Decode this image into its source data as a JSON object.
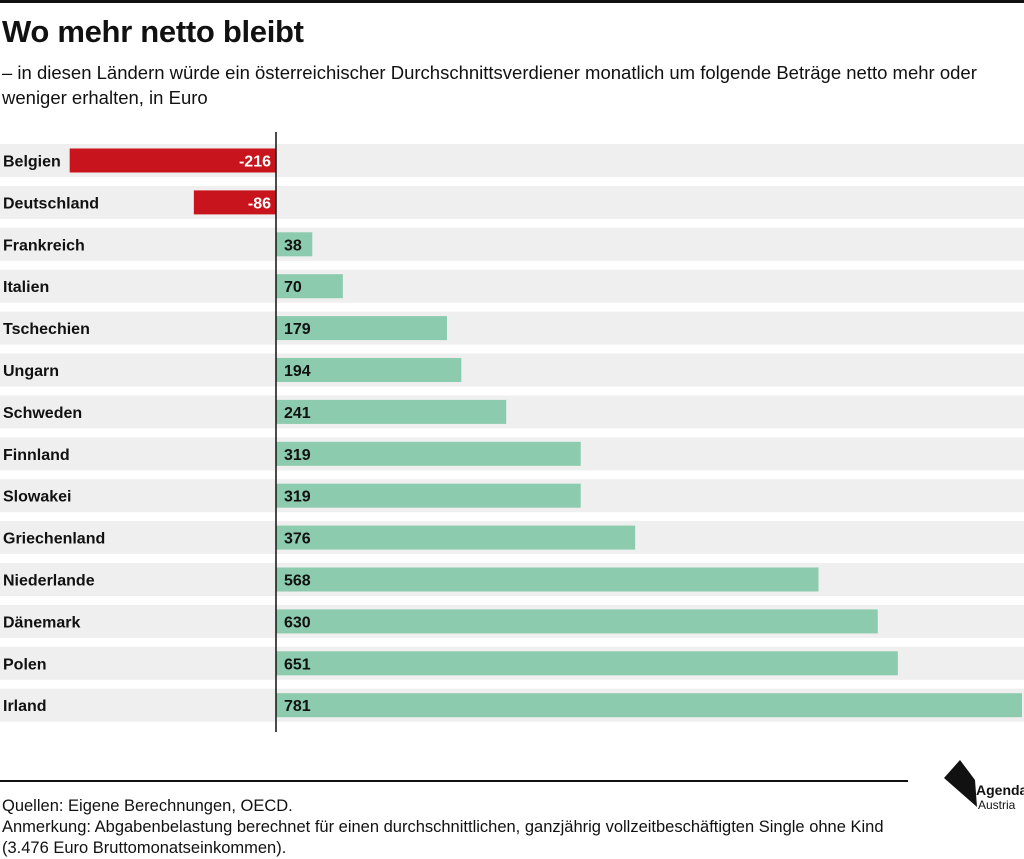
{
  "header": {
    "title": "Wo mehr netto bleibt",
    "subtitle": "– in diesen Ländern würde ein österreichischer Durchschnittsverdiener monatlich um folgende Beträge netto mehr oder weniger erhalten, in Euro"
  },
  "colors": {
    "negative": "#c8141c",
    "positive": "#8ccbad",
    "row_band": "#efefef",
    "axis": "#111111"
  },
  "chart_data": {
    "type": "bar",
    "orientation": "horizontal",
    "title": "Wo mehr netto bleibt",
    "subtitle": "– in diesen Ländern würde ein österreichischer Durchschnittsverdiener monatlich um folgende Beträge netto mehr oder weniger erhalten, in Euro",
    "categories": [
      "Belgien",
      "Deutschland",
      "Frankreich",
      "Italien",
      "Tschechien",
      "Ungarn",
      "Schweden",
      "Finnland",
      "Slowakei",
      "Griechenland",
      "Niederlande",
      "Dänemark",
      "Polen",
      "Irland"
    ],
    "values": [
      -216,
      -86,
      38,
      70,
      179,
      194,
      241,
      319,
      319,
      376,
      568,
      630,
      651,
      781
    ],
    "labels": [
      "-216",
      "-86",
      "38",
      "70",
      "179",
      "194",
      "241",
      "319",
      "319",
      "376",
      "568",
      "630",
      "651",
      "781"
    ],
    "xlim": [
      -216,
      781
    ],
    "grid": false,
    "legend": "none"
  },
  "footer": {
    "sources": "Quellen: Eigene Berechnungen, OECD.",
    "note": "Anmerkung: Abgabenbelastung berechnet für einen durchschnittlichen, ganzjährig vollzeitbeschäftigten Single ohne Kind (3.476 Euro Bruttomonatseinkommen)."
  },
  "logo": {
    "name": "Agenda",
    "sub": "Austria"
  }
}
